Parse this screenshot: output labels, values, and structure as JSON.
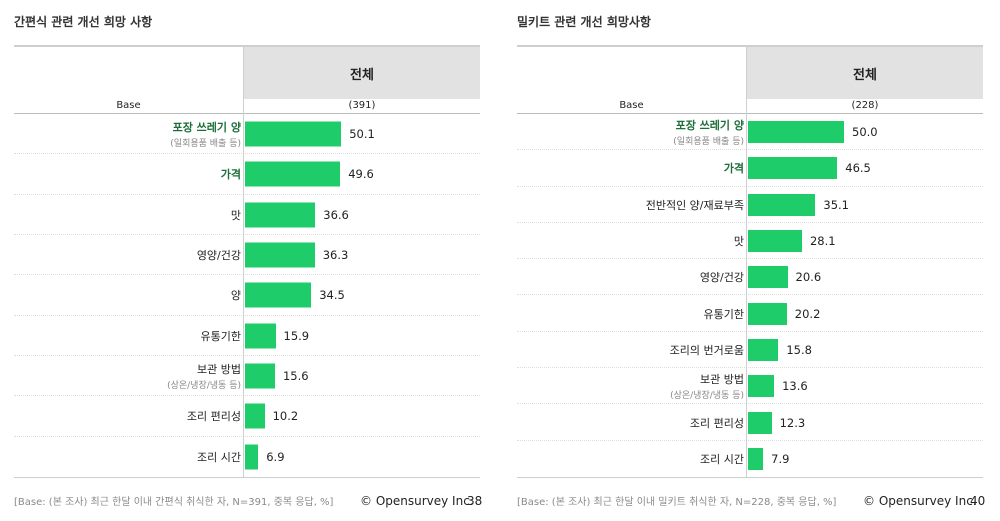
{
  "chart_data": [
    {
      "type": "bar",
      "orientation": "horizontal",
      "title": "간편식 관련 개선 희망 사항",
      "column_header": "전체",
      "base_label": "Base",
      "base_value": "(391)",
      "xlim": [
        0,
        100
      ],
      "categories": [
        {
          "label": "포장 쓰레기 양",
          "sublabel": "(일회용품 배출 등)",
          "highlight": true
        },
        {
          "label": "가격",
          "sublabel": "",
          "highlight": true
        },
        {
          "label": "맛",
          "sublabel": "",
          "highlight": false
        },
        {
          "label": "영양/건강",
          "sublabel": "",
          "highlight": false
        },
        {
          "label": "양",
          "sublabel": "",
          "highlight": false
        },
        {
          "label": "유통기한",
          "sublabel": "",
          "highlight": false
        },
        {
          "label": "보관 방법",
          "sublabel": "(상온/냉장/냉동 등)",
          "highlight": false
        },
        {
          "label": "조리 편리성",
          "sublabel": "",
          "highlight": false
        },
        {
          "label": "조리 시간",
          "sublabel": "",
          "highlight": false
        }
      ],
      "values": [
        50.1,
        49.6,
        36.6,
        36.3,
        34.5,
        15.9,
        15.6,
        10.2,
        6.9
      ],
      "value_labels": [
        "50.1",
        "49.6",
        "36.6",
        "36.3",
        "34.5",
        "15.9",
        "15.6",
        "10.2",
        "6.9"
      ],
      "bar_color": "#1fcc6a",
      "highlight_color": "#1e6e3a",
      "footnote": "[Base: (본 조사) 최근 한달 이내 간편식 취식한 자, N=391, 중복 응답, %]",
      "copyright": "© Opensurvey Inc.",
      "page": "38"
    },
    {
      "type": "bar",
      "orientation": "horizontal",
      "title": "밀키트 관련 개선 희망사항",
      "column_header": "전체",
      "base_label": "Base",
      "base_value": "(228)",
      "xlim": [
        0,
        100
      ],
      "categories": [
        {
          "label": "포장 쓰레기 양",
          "sublabel": "(일회용품 배출 등)",
          "highlight": true
        },
        {
          "label": "가격",
          "sublabel": "",
          "highlight": true
        },
        {
          "label": "전반적인 양/재료부족",
          "sublabel": "",
          "highlight": false
        },
        {
          "label": "맛",
          "sublabel": "",
          "highlight": false
        },
        {
          "label": "영양/건강",
          "sublabel": "",
          "highlight": false
        },
        {
          "label": "유통기한",
          "sublabel": "",
          "highlight": false
        },
        {
          "label": "조리의 번거로움",
          "sublabel": "",
          "highlight": false
        },
        {
          "label": "보관 방법",
          "sublabel": "(상온/냉장/냉동 등)",
          "highlight": false
        },
        {
          "label": "조리 편리성",
          "sublabel": "",
          "highlight": false
        },
        {
          "label": "조리 시간",
          "sublabel": "",
          "highlight": false
        }
      ],
      "values": [
        50.0,
        46.5,
        35.1,
        28.1,
        20.6,
        20.2,
        15.8,
        13.6,
        12.3,
        7.9
      ],
      "value_labels": [
        "50.0",
        "46.5",
        "35.1",
        "28.1",
        "20.6",
        "20.2",
        "15.8",
        "13.6",
        "12.3",
        "7.9"
      ],
      "bar_color": "#1fcc6a",
      "highlight_color": "#1e6e3a",
      "footnote": "[Base: (본 조사) 최근 한달 이내 밀키트 취식한 자, N=228, 중복 응답, %]",
      "copyright": "© Opensurvey Inc.",
      "page": "40"
    }
  ]
}
